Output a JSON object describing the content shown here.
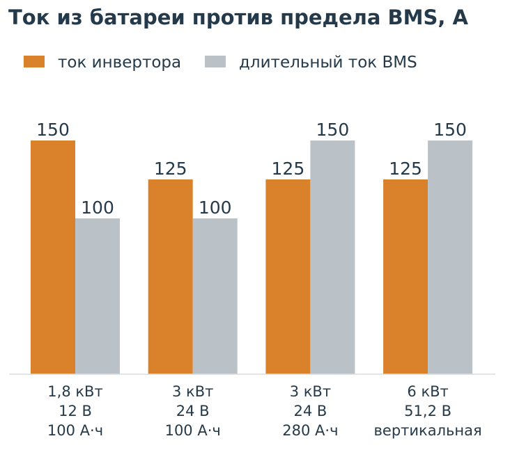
{
  "chart_data": {
    "type": "bar",
    "title": "Ток из батареи против предела BMS, А",
    "xlabel": "",
    "ylabel": "",
    "ylim": [
      0,
      150
    ],
    "grid": false,
    "legend_position": "top-left",
    "categories": [
      [
        "1,8 кВт",
        "12 В",
        "100 А·ч"
      ],
      [
        "3 кВт",
        "24 В",
        "100 А·ч"
      ],
      [
        "3 кВт",
        "24 В",
        "280 А·ч"
      ],
      [
        "6 кВт",
        "51,2 В",
        "вертикальная"
      ]
    ],
    "series": [
      {
        "name": "ток инвертора",
        "values": [
          150,
          125,
          125,
          125
        ],
        "color": "#d9822b"
      },
      {
        "name": "длительный ток BMS",
        "values": [
          100,
          100,
          150,
          150
        ],
        "color": "#bac2c7"
      }
    ]
  }
}
